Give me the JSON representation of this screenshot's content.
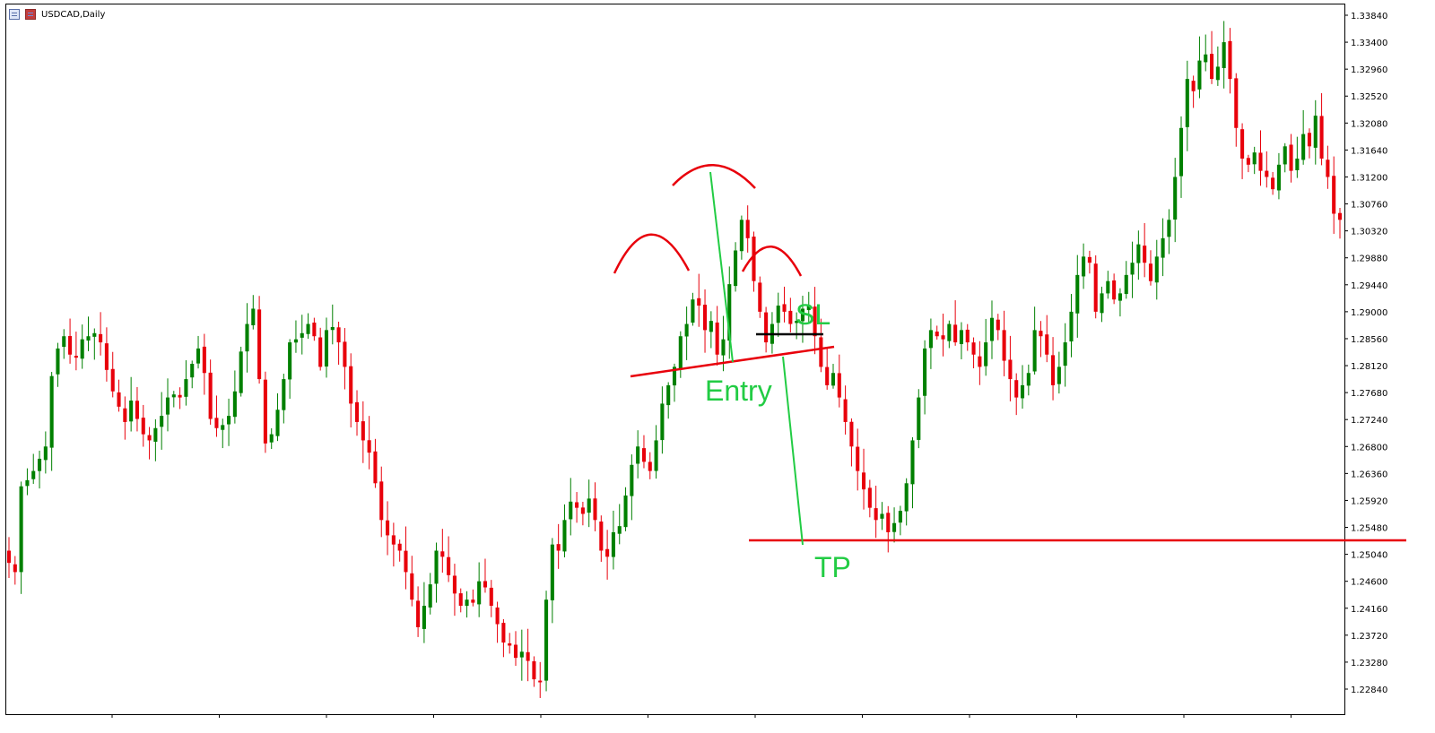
{
  "window": {
    "title": "USDCAD,Daily"
  },
  "colors": {
    "bull": "#008000",
    "bear": "#e8000b",
    "annotation_green": "#22cc44",
    "annotation_red": "#e8000b",
    "annotation_black": "#000000"
  },
  "chart_data": {
    "type": "candlestick",
    "symbol": "USDCAD",
    "timeframe": "Daily",
    "ylim": [
      1.224,
      1.34
    ],
    "y_ticks": [
      "1.33840",
      "1.33400",
      "1.32960",
      "1.32520",
      "1.32080",
      "1.31640",
      "1.31200",
      "1.30760",
      "1.30320",
      "1.29880",
      "1.29440",
      "1.29000",
      "1.28560",
      "1.28120",
      "1.27680",
      "1.27240",
      "1.26800",
      "1.26360",
      "1.25920",
      "1.25480",
      "1.25040",
      "1.24600",
      "1.24160",
      "1.23720",
      "1.23280",
      "1.22840"
    ],
    "closes": [
      1.249,
      1.2475,
      1.2615,
      1.2625,
      1.264,
      1.266,
      1.268,
      1.2795,
      1.284,
      1.286,
      1.283,
      1.2825,
      1.2855,
      1.286,
      1.2865,
      1.285,
      1.2805,
      1.277,
      1.2745,
      1.272,
      1.2755,
      1.2725,
      1.27,
      1.269,
      1.271,
      1.273,
      1.276,
      1.2765,
      1.276,
      1.279,
      1.2815,
      1.284,
      1.28,
      1.2725,
      1.271,
      1.2715,
      1.273,
      1.277,
      1.2835,
      1.288,
      1.2905,
      1.279,
      1.2685,
      1.27,
      1.274,
      1.279,
      1.285,
      1.2855,
      1.2865,
      1.288,
      1.286,
      1.281,
      1.287,
      1.2875,
      1.285,
      1.281,
      1.275,
      1.272,
      1.269,
      1.267,
      1.262,
      1.256,
      1.2535,
      1.252,
      1.251,
      1.2475,
      1.243,
      1.2385,
      1.242,
      1.2455,
      1.251,
      1.25,
      1.247,
      1.244,
      1.242,
      1.243,
      1.2425,
      1.246,
      1.245,
      1.242,
      1.239,
      1.236,
      1.2355,
      1.2335,
      1.2345,
      1.233,
      1.23,
      1.2295,
      1.243,
      1.252,
      1.251,
      1.256,
      1.259,
      1.258,
      1.257,
      1.2595,
      1.256,
      1.251,
      1.25,
      1.254,
      1.255,
      1.26,
      1.265,
      1.268,
      1.2655,
      1.264,
      1.269,
      1.275,
      1.278,
      1.281,
      1.286,
      1.288,
      1.292,
      1.291,
      1.287,
      1.2885,
      1.283,
      1.2855,
      1.2945,
      1.3,
      1.305,
      1.302,
      1.295,
      1.29,
      1.285,
      1.288,
      1.291,
      1.29,
      1.288,
      1.2885,
      1.2905,
      1.291,
      1.286,
      1.281,
      1.278,
      1.28,
      1.276,
      1.272,
      1.268,
      1.264,
      1.261,
      1.258,
      1.256,
      1.257,
      1.254,
      1.2555,
      1.2575,
      1.262,
      1.269,
      1.276,
      1.284,
      1.287,
      1.286,
      1.2855,
      1.288,
      1.285,
      1.287,
      1.285,
      1.283,
      1.281,
      1.285,
      1.289,
      1.287,
      1.282,
      1.279,
      1.276,
      1.278,
      1.28,
      1.287,
      1.286,
      1.283,
      1.278,
      1.281,
      1.285,
      1.29,
      1.296,
      1.299,
      1.298,
      1.29,
      1.293,
      1.295,
      1.292,
      1.293,
      1.296,
      1.298,
      1.301,
      1.298,
      1.295,
      1.299,
      1.302,
      1.305,
      1.312,
      1.32,
      1.328,
      1.326,
      1.331,
      1.332,
      1.328,
      1.33,
      1.334,
      1.328,
      1.32,
      1.315,
      1.314,
      1.316,
      1.313,
      1.312,
      1.31,
      1.314,
      1.317,
      1.313,
      1.315,
      1.319,
      1.317,
      1.322,
      1.315,
      1.312,
      1.306,
      1.305
    ]
  },
  "annotations": {
    "sl_label": "SL",
    "entry_label": "Entry",
    "tp_label": "TP"
  }
}
